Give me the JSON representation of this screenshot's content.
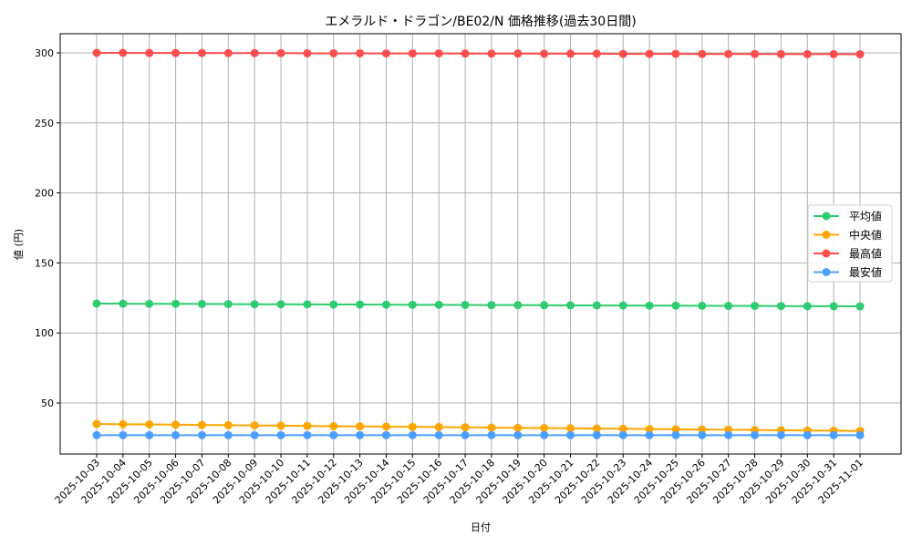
{
  "chart_data": {
    "type": "line",
    "title": "エメラルド・ドラゴン/BE02/N 価格推移(過去30日間)",
    "xlabel": "日付",
    "ylabel": "値 (円)",
    "ylim": [
      13,
      314
    ],
    "yticks": [
      50,
      100,
      150,
      200,
      250,
      300
    ],
    "grid": true,
    "legend_position": "center right",
    "x": [
      "2025-10-03",
      "2025-10-04",
      "2025-10-05",
      "2025-10-06",
      "2025-10-07",
      "2025-10-08",
      "2025-10-09",
      "2025-10-10",
      "2025-10-11",
      "2025-10-12",
      "2025-10-13",
      "2025-10-14",
      "2025-10-15",
      "2025-10-16",
      "2025-10-17",
      "2025-10-18",
      "2025-10-19",
      "2025-10-20",
      "2025-10-21",
      "2025-10-22",
      "2025-10-23",
      "2025-10-24",
      "2025-10-25",
      "2025-10-26",
      "2025-10-27",
      "2025-10-28",
      "2025-10-29",
      "2025-10-30",
      "2025-10-31",
      "2025-11-01"
    ],
    "series": [
      {
        "name": "平均値",
        "color": "#2ecc71",
        "values": [
          121.0,
          120.9,
          120.8,
          120.8,
          120.7,
          120.6,
          120.5,
          120.5,
          120.4,
          120.3,
          120.3,
          120.2,
          120.1,
          120.1,
          120.0,
          119.9,
          119.9,
          119.8,
          119.7,
          119.7,
          119.6,
          119.5,
          119.5,
          119.4,
          119.3,
          119.3,
          119.2,
          119.1,
          119.1,
          119.0
        ]
      },
      {
        "name": "中央値",
        "color": "#ffa500",
        "values": [
          35.0,
          34.8,
          34.7,
          34.5,
          34.3,
          34.1,
          34.0,
          33.8,
          33.6,
          33.4,
          33.3,
          33.1,
          32.9,
          32.8,
          32.6,
          32.4,
          32.2,
          32.1,
          31.9,
          31.7,
          31.6,
          31.4,
          31.2,
          31.0,
          30.9,
          30.7,
          30.5,
          30.3,
          30.2,
          30.0
        ]
      },
      {
        "name": "最高値",
        "color": "#ff4d4d",
        "values": [
          300.0,
          300.0,
          299.9,
          299.9,
          299.9,
          299.8,
          299.8,
          299.8,
          299.7,
          299.7,
          299.7,
          299.6,
          299.6,
          299.6,
          299.5,
          299.5,
          299.5,
          299.4,
          299.4,
          299.4,
          299.3,
          299.3,
          299.3,
          299.2,
          299.2,
          299.2,
          299.1,
          299.1,
          299.1,
          299.0
        ]
      },
      {
        "name": "最安値",
        "color": "#4d9fff",
        "values": [
          27,
          27,
          27,
          27,
          27,
          27,
          27,
          27,
          27,
          27,
          27,
          27,
          27,
          27,
          27,
          27,
          27,
          27,
          27,
          27,
          27,
          27,
          27,
          27,
          27,
          27,
          27,
          27,
          27,
          27
        ]
      }
    ]
  }
}
